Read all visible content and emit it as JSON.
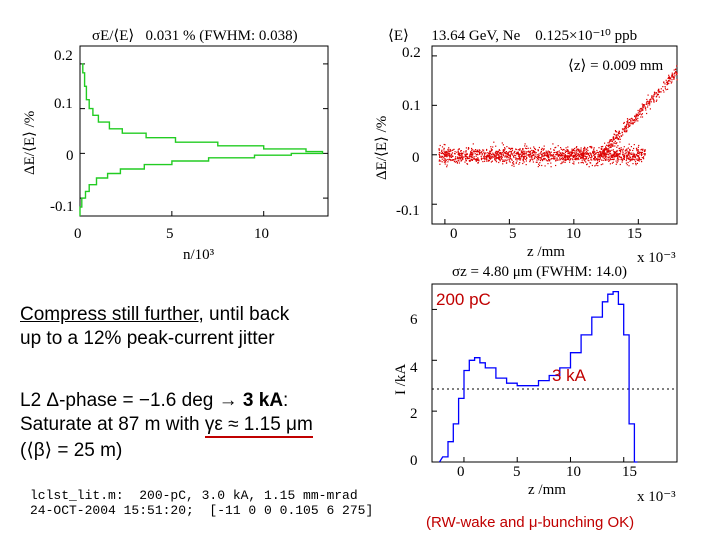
{
  "panel_left": {
    "header_prefix": "σE/⟨E⟩",
    "header_value": "0.031 % (FWHM:  0.038)",
    "ylabel": "ΔE/⟨E⟩ /%",
    "xlabel": "n/10³",
    "yticks": [
      "0.2",
      "0.1",
      "0",
      "-0.1"
    ],
    "xticks": [
      "0",
      "5",
      "10"
    ]
  },
  "panel_right": {
    "header_left": "⟨E⟩",
    "header_mid": "13.64 GeV, Ne",
    "header_right": "0.125×10⁻¹⁰ ppb",
    "annotation": "⟨z⟩ = 0.009 mm",
    "ylabel": "ΔE/⟨E⟩ /%",
    "xlabel": "z /mm",
    "xscale": "x 10⁻³",
    "yticks": [
      "0.2",
      "0.1",
      "0",
      "-0.1"
    ],
    "xticks": [
      "0",
      "5",
      "10",
      "15"
    ]
  },
  "panel_current": {
    "header": "σz = 4.80 μm (FWHM: 14.0)",
    "charge_label": "200 pC",
    "peak_label": "3 kA",
    "ylabel": "I /kA",
    "xlabel": "z /mm",
    "xscale": "x 10⁻³",
    "yticks": [
      "6",
      "4",
      "2",
      "0"
    ],
    "xticks": [
      "0",
      "5",
      "10",
      "15"
    ]
  },
  "text": {
    "line1a": "Compress still further",
    "line1b": ", until back",
    "line2": "up to a 12% peak-current jitter",
    "line3a": "L2 Δ-phase = −1.6 deg → ",
    "line3b": "3 kA",
    "line3c": ":",
    "line4a": "Saturate at 87 m with ",
    "line4b": "γε ≈ 1.15 μm",
    "line5": "(⟨β⟩ = 25 m)",
    "footer1": "lclst_lit.m:  200-pC, 3.0 kA, 1.15 mm-mrad",
    "footer2": "24-OCT-2004 15:51:20;  [-11 0 0 0.105 6 275]",
    "note": "(RW-wake and μ-bunching OK)"
  },
  "colors": {
    "histogram": "#22cc22",
    "scatter": "#dd0000",
    "current": "#0000ff",
    "accent_red": "#c00000"
  },
  "chart_data": [
    {
      "type": "line",
      "title": "σE/⟨E⟩  0.031 % (FWHM:  0.038)",
      "xlabel": "n/10³",
      "ylabel": "ΔE/⟨E⟩ /%",
      "xlim": [
        0,
        13.5
      ],
      "ylim": [
        -0.14,
        0.24
      ],
      "series": [
        {
          "y": [
            -0.14,
            -0.12,
            -0.1,
            -0.085,
            -0.07,
            -0.055,
            -0.045,
            -0.035,
            -0.025,
            -0.017,
            -0.01,
            -0.004,
            0.0,
            0.004,
            0.01,
            0.017,
            0.025,
            0.035,
            0.045,
            0.055,
            0.07,
            0.085,
            0.1,
            0.12,
            0.15,
            0.18,
            0.2
          ],
          "x": [
            0.0,
            0.1,
            0.3,
            0.5,
            0.9,
            1.5,
            2.2,
            3.5,
            5.0,
            7.0,
            9.5,
            11.5,
            13.2,
            12.3,
            10.0,
            7.5,
            5.2,
            3.6,
            2.3,
            1.6,
            1.0,
            0.7,
            0.5,
            0.35,
            0.25,
            0.15,
            0.1
          ]
        }
      ]
    },
    {
      "type": "scatter",
      "title": "⟨E⟩  13.64 GeV, Ne  0.125×10⁻¹⁰ ppb",
      "xlabel": "z /mm",
      "ylabel": "ΔE/⟨E⟩ /%",
      "xscale_note": "x 10⁻³",
      "xlim": [
        -1,
        18
      ],
      "ylim": [
        -0.14,
        0.22
      ],
      "annotation": "⟨z⟩ = 0.009 mm",
      "core_band": {
        "x": [
          -0.5,
          15.5
        ],
        "y_center": 0,
        "y_spread": 0.03
      },
      "tail": {
        "x": [
          12,
          18
        ],
        "y": [
          0.0,
          0.17
        ]
      }
    },
    {
      "type": "line",
      "title": "σz = 4.80 μm (FWHM: 14.0)",
      "xlabel": "z /mm",
      "ylabel": "I /kA",
      "xscale_note": "x 10⁻³",
      "xlim": [
        -3,
        20
      ],
      "ylim": [
        0,
        7
      ],
      "series": [
        {
          "x": [
            -2.0,
            -1.5,
            -1.0,
            -0.5,
            0.0,
            0.5,
            1.0,
            1.5,
            2.0,
            3.0,
            4.0,
            5.0,
            6.0,
            7.0,
            8.0,
            9.0,
            10.0,
            11.0,
            12.0,
            13.0,
            13.5,
            14.0,
            14.5,
            15.0,
            15.5,
            16.0
          ],
          "y": [
            0.2,
            0.8,
            1.5,
            2.5,
            3.6,
            4.0,
            4.1,
            3.9,
            3.7,
            3.3,
            3.1,
            3.0,
            3.0,
            3.2,
            3.4,
            3.7,
            4.3,
            5.0,
            5.7,
            6.3,
            6.6,
            6.7,
            6.2,
            5.0,
            1.5,
            0.0
          ]
        }
      ]
    }
  ]
}
